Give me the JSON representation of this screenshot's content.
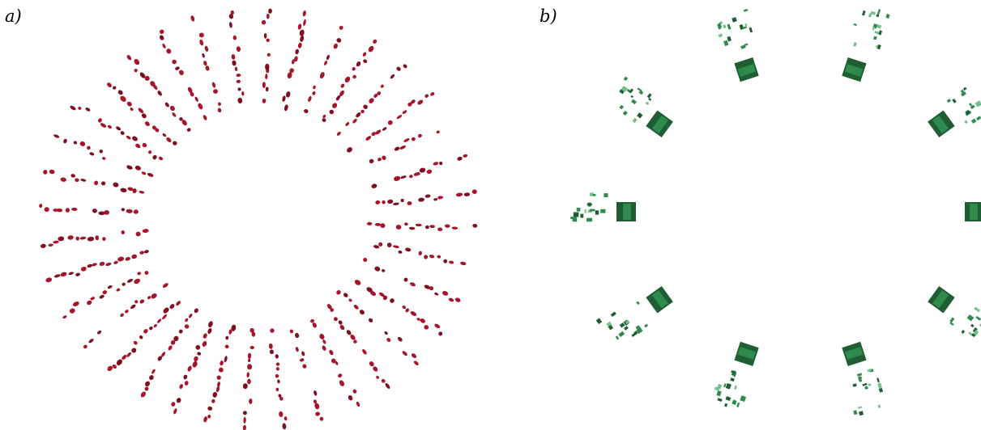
{
  "panels": [
    {
      "id": "a",
      "label": "a)",
      "mark_color": "#a6152a",
      "mark_color_dark": "#7e0f20"
    },
    {
      "id": "b",
      "label": "b)",
      "mark_color": "#2f8a4e",
      "mark_color_dark": "#1f5e33",
      "mark_color_light": "#6fc08a"
    }
  ]
}
